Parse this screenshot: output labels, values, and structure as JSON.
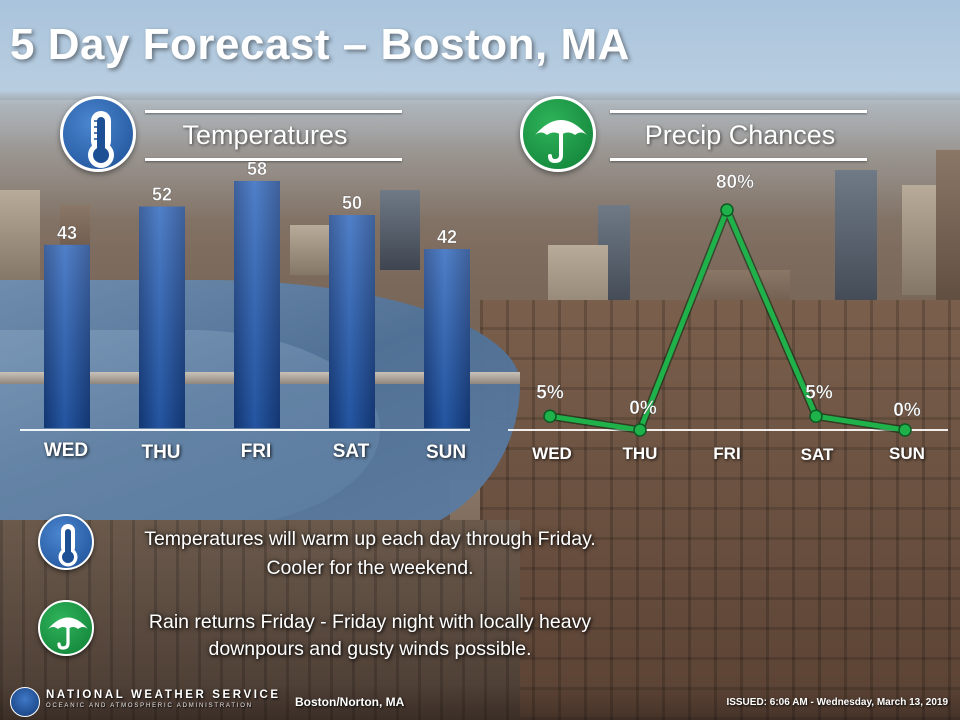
{
  "title": "5 Day Forecast – Boston, MA",
  "temperatures_section": {
    "heading": "Temperatures",
    "icon": "thermometer-icon"
  },
  "precip_section": {
    "heading": "Precip Chances",
    "icon": "umbrella-icon"
  },
  "chart_data": [
    {
      "type": "bar",
      "title": "Temperatures",
      "categories": [
        "WED",
        "THU",
        "FRI",
        "SAT",
        "SUN"
      ],
      "values": [
        43,
        52,
        58,
        50,
        42
      ],
      "data_labels": [
        "43",
        "52",
        "58",
        "50",
        "42"
      ],
      "units": "°F",
      "bar_color": "#1f56a8",
      "ylim": [
        0,
        60
      ]
    },
    {
      "type": "line",
      "title": "Precip Chances",
      "categories": [
        "WED",
        "THU",
        "FRI",
        "SAT",
        "SUN"
      ],
      "values": [
        5,
        0,
        80,
        5,
        0
      ],
      "data_labels": [
        "5%",
        "0%",
        "80%",
        "5%",
        "0%"
      ],
      "units": "%",
      "line_color": "#1fb24a",
      "ylim": [
        0,
        100
      ]
    }
  ],
  "notes": [
    {
      "icon": "thermometer-icon",
      "lines": [
        "Temperatures will warm up each day through Friday.",
        "Cooler for the weekend."
      ]
    },
    {
      "icon": "umbrella-icon",
      "lines": [
        "Rain returns Friday - Friday night with locally heavy",
        "downpours and gusty winds possible."
      ]
    }
  ],
  "footer": {
    "agency": "NATIONAL WEATHER SERVICE",
    "agency_sub": "OCEANIC AND ATMOSPHERIC ADMINISTRATION",
    "office": "Boston/Norton, MA",
    "issued": "ISSUED: 6:06 AM - Wednesday, March 13, 2019"
  },
  "colors": {
    "temp_icon_bg": "#1d4f95",
    "precip_icon_bg": "#0f7f36",
    "text": "#ffffff"
  }
}
